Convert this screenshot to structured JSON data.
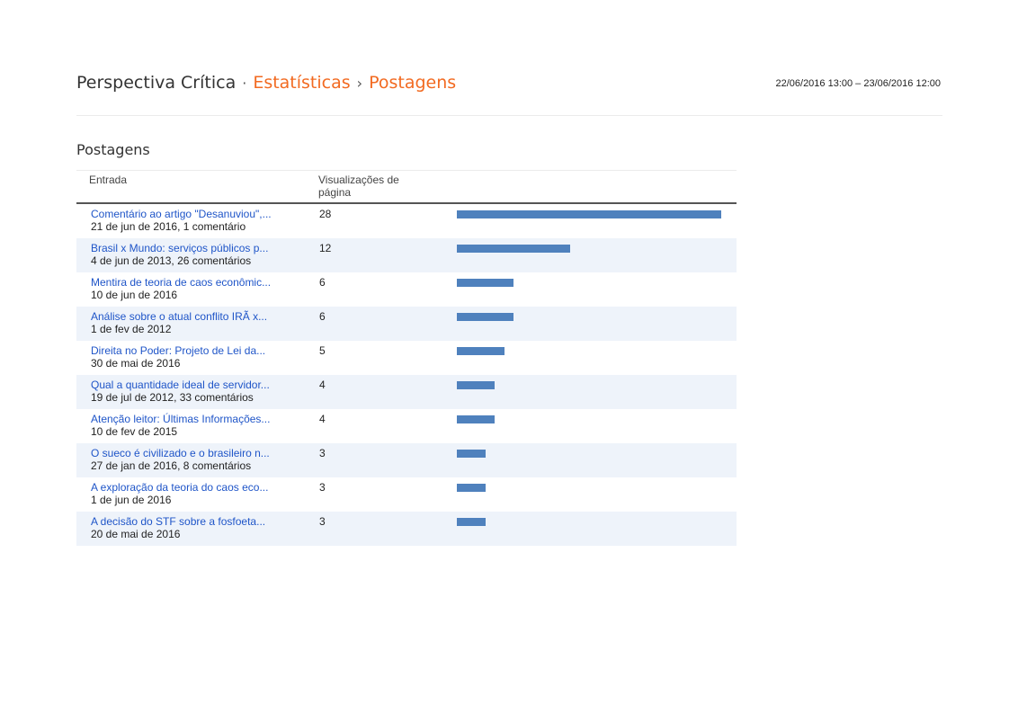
{
  "header": {
    "site_title": "Perspectiva Crítica",
    "separator": "·",
    "breadcrumb_stats": "Estatísticas",
    "breadcrumb_arrow": "›",
    "breadcrumb_current": "Postagens",
    "date_range": "22/06/2016 13:00 – 23/06/2016 12:00"
  },
  "section_title": "Postagens",
  "table": {
    "col_entry": "Entrada",
    "col_views": "Visualizações de página",
    "max_views": 28,
    "rows": [
      {
        "title": "Comentário ao artigo \"Desanuviou\",...",
        "meta": "21 de jun de 2016, 1 comentário",
        "views": 28
      },
      {
        "title": "Brasil x Mundo: serviços públicos p...",
        "meta": "4 de jun de 2013, 26 comentários",
        "views": 12
      },
      {
        "title": "Mentira de teoria de caos econômic...",
        "meta": "10 de jun de 2016",
        "views": 6
      },
      {
        "title": "Análise sobre o atual conflito IRÃ x...",
        "meta": "1 de fev de 2012",
        "views": 6
      },
      {
        "title": "Direita no Poder: Projeto de Lei da...",
        "meta": "30 de mai de 2016",
        "views": 5
      },
      {
        "title": "Qual a quantidade ideal de servidor...",
        "meta": "19 de jul de 2012, 33 comentários",
        "views": 4
      },
      {
        "title": "Atenção leitor: Últimas Informações...",
        "meta": "10 de fev de 2015",
        "views": 4
      },
      {
        "title": "O sueco é civilizado e o brasileiro n...",
        "meta": "27 de jan de 2016, 8 comentários",
        "views": 3
      },
      {
        "title": "A exploração da teoria do caos eco...",
        "meta": "1 de jun de 2016",
        "views": 3
      },
      {
        "title": "A decisão do STF sobre a fosfoeta...",
        "meta": "20 de mai de 2016",
        "views": 3
      }
    ]
  },
  "colors": {
    "accent": "#f26a21",
    "link": "#1f55c8",
    "bar": "#4f81bd",
    "row_alt": "#eef3fa"
  }
}
